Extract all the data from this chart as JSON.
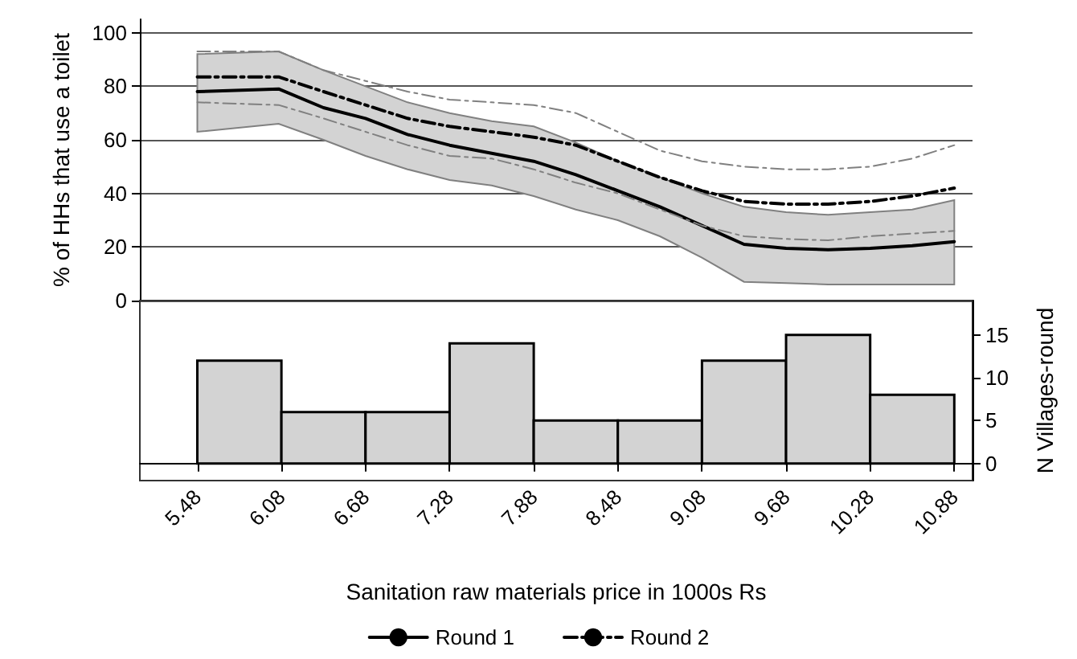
{
  "chart_data": [
    {
      "type": "line",
      "ylabel": "% of HHs that use a toilet",
      "x": [
        5.48,
        6.06,
        6.38,
        6.68,
        6.98,
        7.28,
        7.58,
        7.88,
        8.18,
        8.48,
        8.78,
        9.08,
        9.38,
        9.68,
        9.98,
        10.28,
        10.58,
        10.88
      ],
      "xlim": [
        5.07,
        11.01
      ],
      "ylim": [
        0,
        105
      ],
      "yticks": [
        0,
        20,
        40,
        60,
        80,
        100
      ],
      "grid": "y",
      "legend": "bottom",
      "tick_labels": "y",
      "series": [
        {
          "name": "Round 1",
          "color": "#000000",
          "line_style": "solid",
          "values": [
            78,
            79,
            72,
            68,
            62,
            58,
            55,
            52,
            47,
            41,
            35,
            28,
            21,
            19.5,
            19,
            19.5,
            20.5,
            22
          ],
          "lower": [
            63,
            66,
            60,
            54,
            49,
            45,
            43,
            39,
            34,
            30,
            24,
            16,
            7,
            6.5,
            6,
            6,
            6,
            6
          ],
          "upper": [
            92,
            93,
            86,
            80,
            74,
            70,
            67,
            65,
            59,
            52,
            46,
            40,
            35,
            33,
            32,
            33,
            34,
            37.5
          ]
        },
        {
          "name": "Round 2",
          "color": "#000000",
          "line_style": "dashed",
          "values": [
            83.5,
            83.5,
            78,
            73,
            68,
            65,
            63,
            61,
            58,
            52,
            46,
            41,
            37,
            36,
            36,
            37,
            39,
            42
          ]
        },
        {
          "color": "#808080",
          "line_style": "dashed",
          "values": [
            93,
            93,
            86,
            82,
            78,
            75,
            74,
            73,
            70,
            63,
            56,
            52,
            50,
            49,
            49,
            50,
            53,
            58
          ]
        },
        {
          "color": "#808080",
          "line_style": "dashed",
          "values": [
            74,
            73,
            68,
            63,
            58,
            54,
            53,
            49,
            44,
            40,
            34,
            28,
            24,
            23,
            22.5,
            24,
            25,
            26
          ]
        }
      ]
    },
    {
      "type": "histogram",
      "xlabel": "Sanitation raw materials price in 1000s Rs",
      "ylabel": "N Villages-round",
      "bins": [
        5.48,
        6.08,
        6.68,
        7.28,
        7.88,
        8.48,
        9.08,
        9.68,
        10.28,
        10.88
      ],
      "values": [
        12,
        6,
        6,
        14,
        5,
        5,
        12,
        15,
        8
      ],
      "color": "#d3d3d3",
      "xlim": [
        5.07,
        11.01
      ],
      "xticks": [
        5.48,
        6.08,
        6.68,
        7.28,
        7.88,
        8.48,
        9.08,
        9.68,
        10.28,
        10.88
      ],
      "ylim": [
        -2,
        19
      ],
      "yticks": [
        0,
        5,
        10,
        15
      ]
    }
  ]
}
